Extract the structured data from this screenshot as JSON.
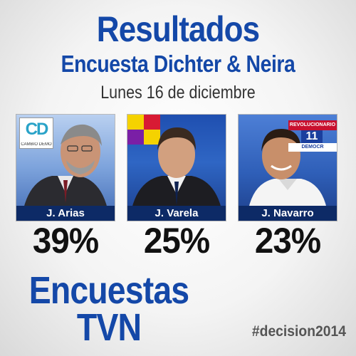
{
  "header": {
    "title": "Resultados",
    "subtitle": "Encuesta Dichter & Neira",
    "date": "Lunes 16 de diciembre"
  },
  "candidates": [
    {
      "name": "J. Arias",
      "percent": "39%",
      "party_logo_text": "CD",
      "party_logo_subtext": "CAMBIO DEMO",
      "party_icon": "cambio-democratico-logo-icon"
    },
    {
      "name": "J. Varela",
      "percent": "25%",
      "party_icon": "panamenista-flag-icon",
      "flag_colors": [
        "#f5d200",
        "#d81b34",
        "#7a1fa6"
      ]
    },
    {
      "name": "J. Navarro",
      "percent": "23%",
      "party_logo_top": "REVOLUCIONARIO",
      "party_logo_num": "11",
      "party_logo_bottom": "DEMOCR",
      "party_icon": "prd-logo-icon"
    }
  ],
  "footer": {
    "brand_line1": "Encuestas",
    "brand_line2": "TVN",
    "hashtag": "#decision2014"
  },
  "colors": {
    "brand_blue": "#1448a8",
    "name_strip": "#0d2a66",
    "percent_text": "#111111"
  }
}
